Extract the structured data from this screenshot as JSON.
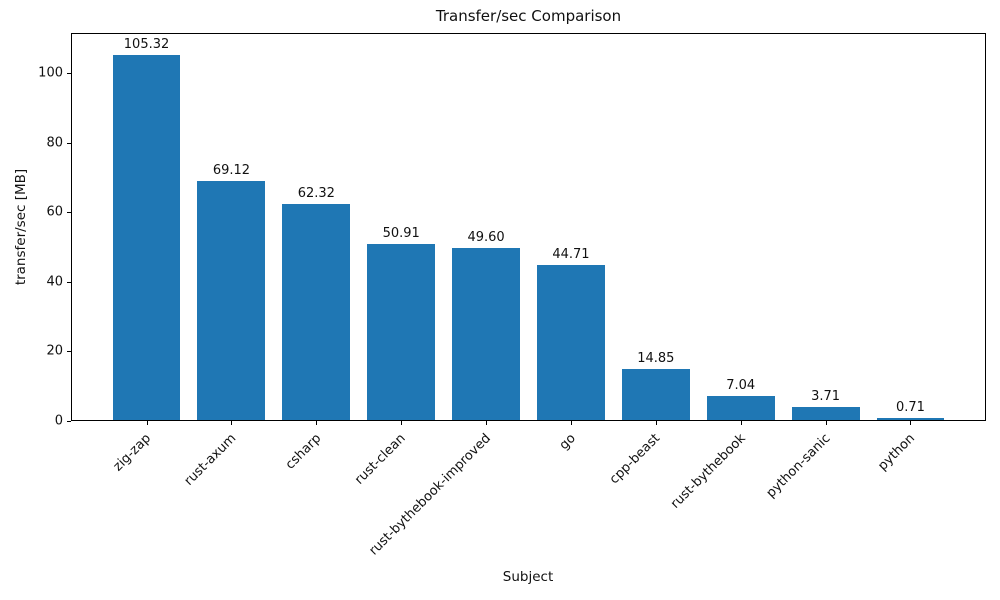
{
  "chart_data": {
    "type": "bar",
    "title": "Transfer/sec Comparison",
    "xlabel": "Subject",
    "ylabel": "transfer/sec [MB]",
    "categories": [
      "zig-zap",
      "rust-axum",
      "csharp",
      "rust-clean",
      "rust-bythebook-improved",
      "go",
      "cpp-beast",
      "rust-bythebook",
      "python-sanic",
      "python"
    ],
    "values": [
      105.32,
      69.12,
      62.32,
      50.91,
      49.6,
      44.71,
      14.85,
      7.04,
      3.71,
      0.71
    ],
    "value_label_decimals": 2,
    "yticks": [
      0,
      20,
      40,
      60,
      80,
      100
    ],
    "ylim": [
      0,
      111.5
    ],
    "bar_color": "#1f77b4",
    "grid": false,
    "legend_position": "none",
    "x_tick_rotation_deg": 45
  }
}
